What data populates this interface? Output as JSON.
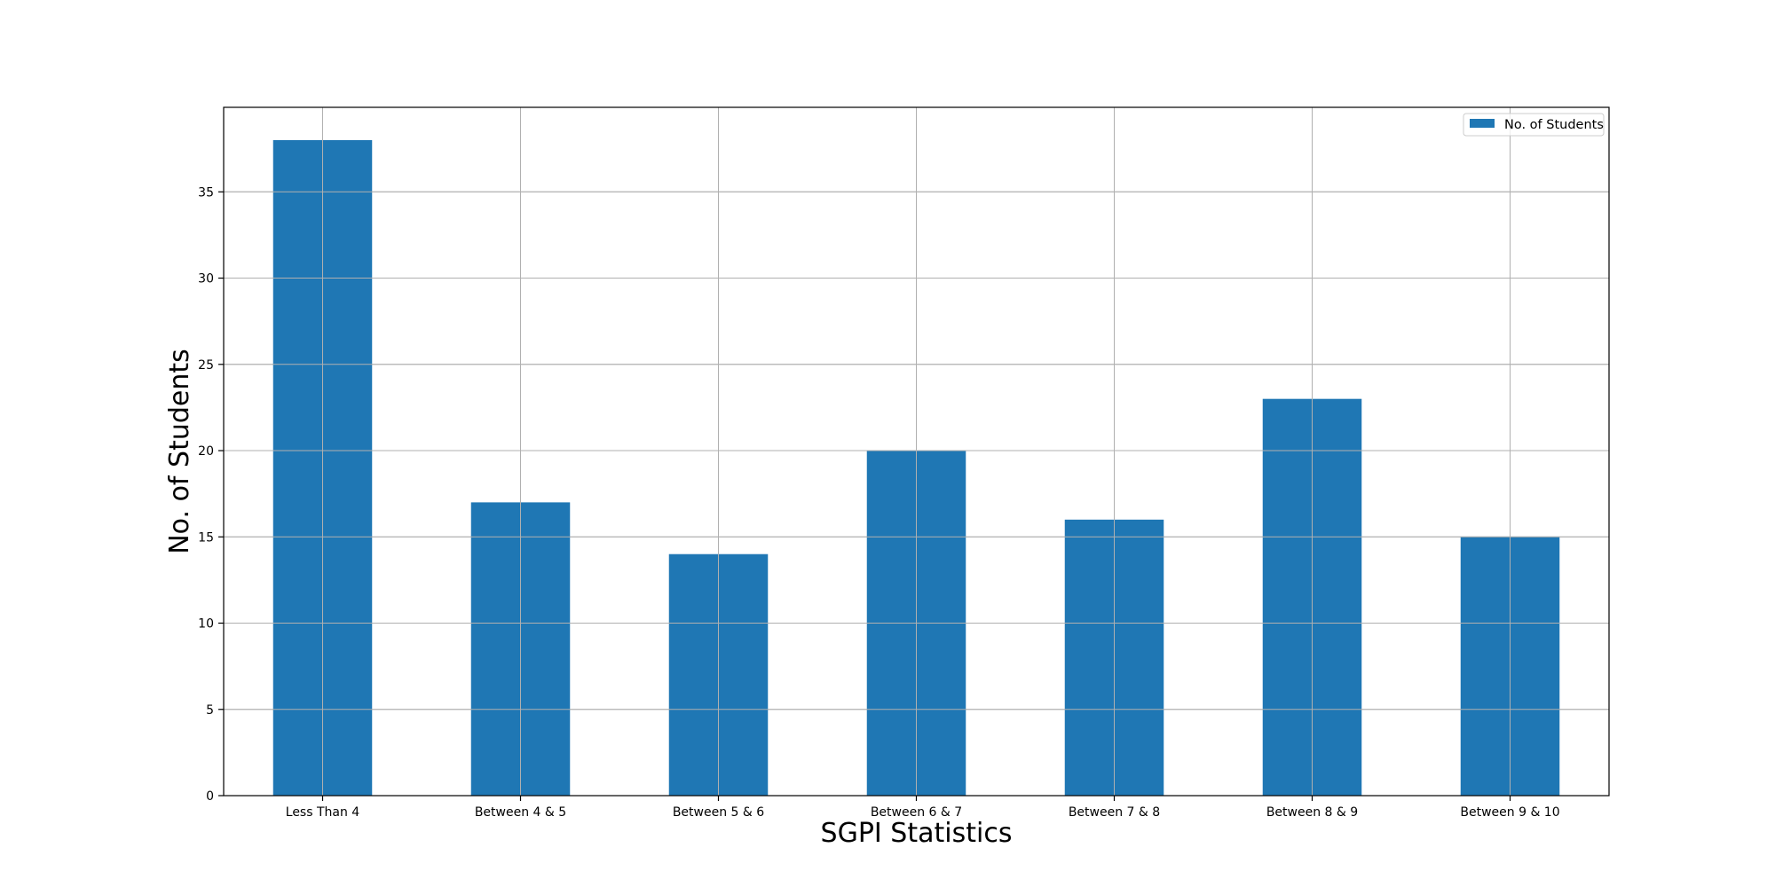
{
  "chart_data": {
    "type": "bar",
    "categories": [
      "Less Than 4",
      "Between 4 & 5",
      "Between 5 & 6",
      "Between 6 & 7",
      "Between 7 & 8",
      "Between 8 & 9",
      "Between 9 & 10"
    ],
    "series": [
      {
        "name": "No. of Students",
        "values": [
          38,
          17,
          14,
          20,
          16,
          23,
          15
        ]
      }
    ],
    "title": "",
    "xlabel": "SGPI Statistics",
    "ylabel": "No. of Students",
    "ylim": [
      0,
      39.9
    ],
    "yticks": [
      0,
      5,
      10,
      15,
      20,
      25,
      30,
      35
    ],
    "grid": true,
    "legend_position": "top-right",
    "colors": {
      "bar": "#1f77b4",
      "grid": "#b0b0b0",
      "axis": "#000000"
    }
  }
}
